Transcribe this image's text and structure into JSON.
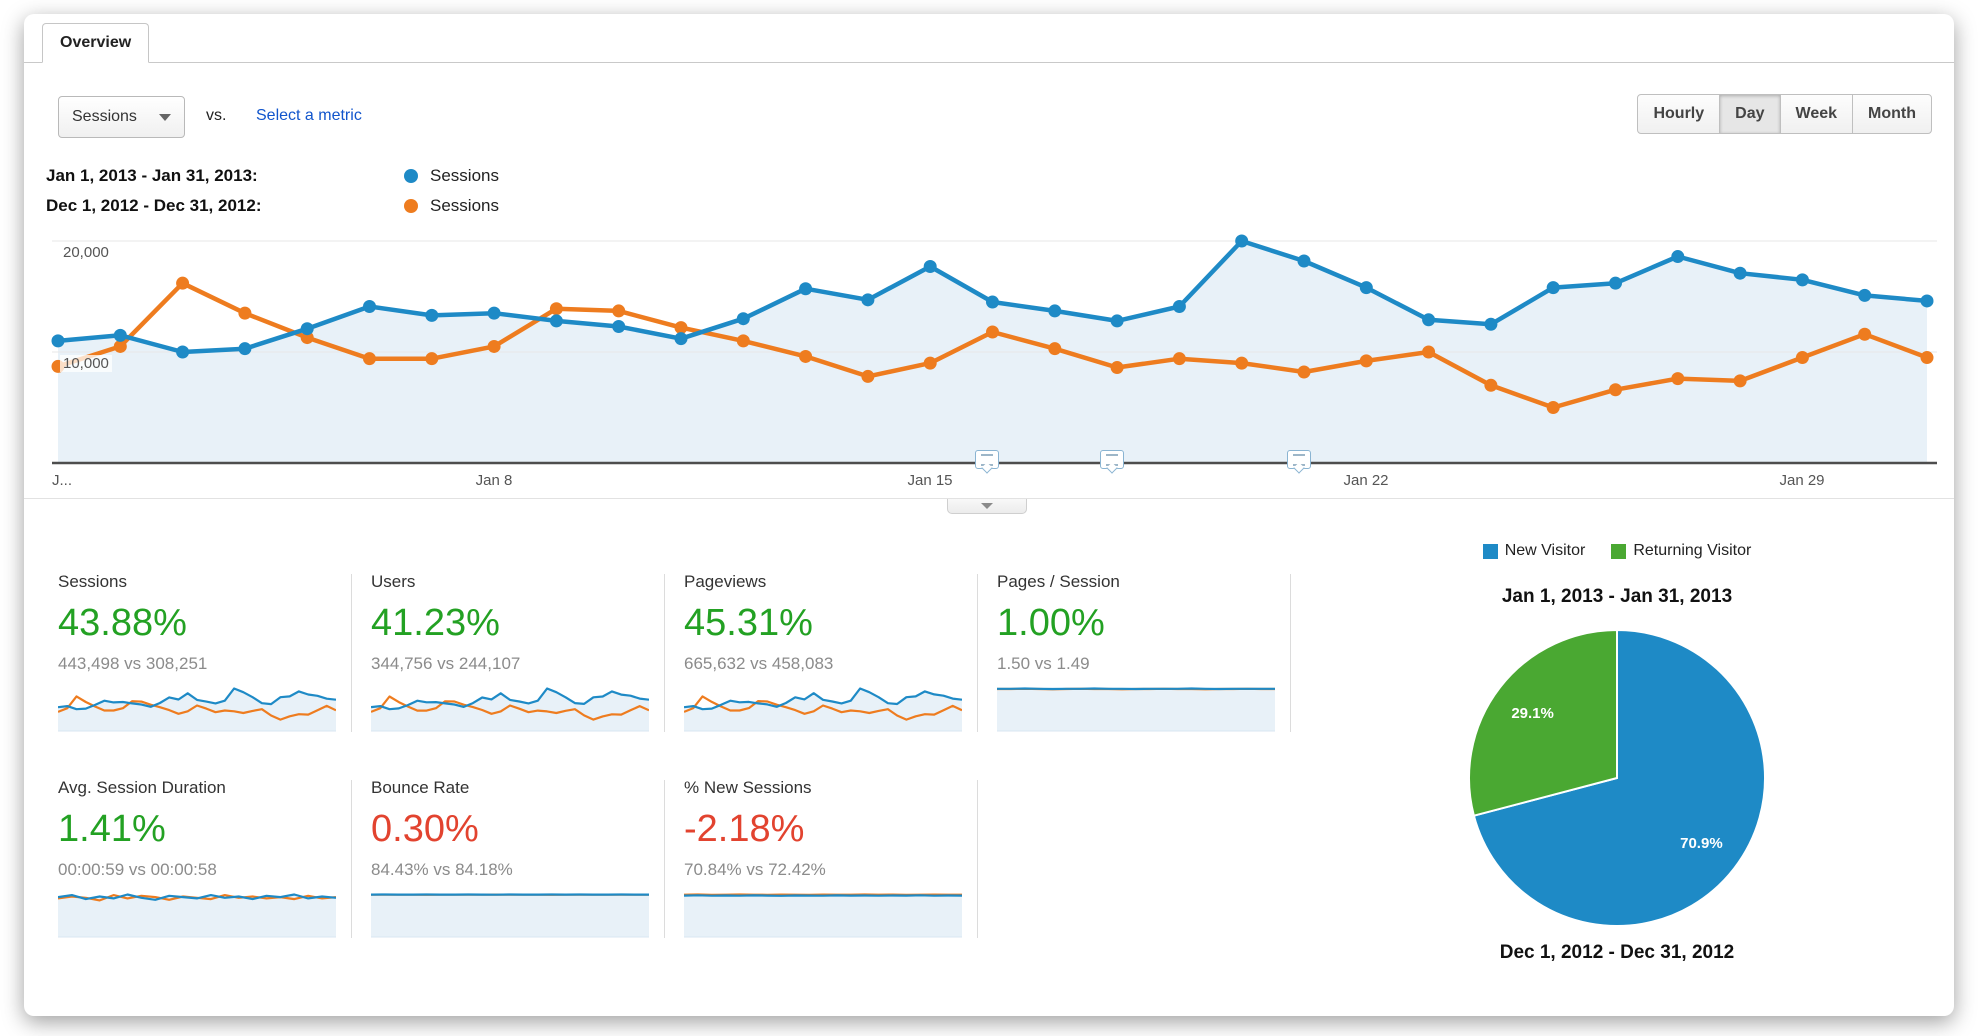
{
  "tab": {
    "label": "Overview"
  },
  "controls": {
    "metric_select": "Sessions",
    "vs_label": "vs.",
    "select_metric_link": "Select a metric",
    "granularity": [
      "Hourly",
      "Day",
      "Week",
      "Month"
    ],
    "granularity_active": "Day"
  },
  "legend": [
    {
      "range": "Jan 1, 2013 - Jan 31, 2013:",
      "series": "Sessions",
      "color": "#1e8ac6"
    },
    {
      "range": "Dec 1, 2012 - Dec 31, 2012:",
      "series": "Sessions",
      "color": "#ee7c1f"
    }
  ],
  "colors": {
    "blue": "#1e8ac6",
    "orange": "#ee7c1f",
    "area_fill": "#e8f1f8",
    "grid": "#e7e7e7",
    "axis": "#4d4d4d",
    "positive_green": "#23a123",
    "negative_red": "#e2432f",
    "link_blue": "#1155cc",
    "pie_green": "#4aa832"
  },
  "chart_data": [
    {
      "type": "line",
      "title": "Sessions by day, Jan 2013 vs Dec 2012",
      "xtick_labels": [
        "J...",
        "Jan 8",
        "Jan 15",
        "Jan 22",
        "Jan 29"
      ],
      "xtick_days": [
        1,
        8,
        15,
        22,
        29
      ],
      "ytick_labels": [
        "20,000",
        "10,000"
      ],
      "yticks": [
        20000,
        10000
      ],
      "ylim": [
        0,
        22000
      ],
      "grid": true,
      "annotations_day": [
        15.9,
        17.9,
        20.9
      ],
      "series": [
        {
          "name": "Jan 1, 2013 - Jan 31, 2013 Sessions",
          "color": "#1e8ac6",
          "area": true,
          "values": [
            11000,
            11500,
            10000,
            10300,
            12100,
            14100,
            13300,
            13500,
            12800,
            12300,
            11200,
            13000,
            15700,
            14700,
            17700,
            14500,
            13700,
            12800,
            14100,
            20000,
            18200,
            15800,
            12900,
            12500,
            15800,
            16200,
            18600,
            17100,
            16500,
            15100,
            14600
          ]
        },
        {
          "name": "Dec 1, 2012 - Dec 31, 2012 Sessions",
          "color": "#ee7c1f",
          "area": false,
          "values": [
            8700,
            10500,
            16200,
            13500,
            11300,
            9400,
            9400,
            10500,
            13900,
            13700,
            12200,
            11000,
            9600,
            7800,
            9000,
            11800,
            10300,
            8600,
            9400,
            9000,
            8200,
            9200,
            10000,
            7000,
            5000,
            6600,
            7600,
            7400,
            9500,
            11600,
            9500
          ]
        }
      ]
    },
    {
      "type": "pie",
      "categories": [
        "New Visitor",
        "Returning Visitor"
      ],
      "values": [
        70.9,
        29.1
      ],
      "labels_display": [
        "70.9%",
        "29.1%"
      ],
      "colors": [
        "#1e8ac6",
        "#4aa832"
      ],
      "legend_position": "top"
    }
  ],
  "cards": [
    {
      "title": "Sessions",
      "value": "43.88%",
      "value_color": "#23a123",
      "compare": "443,498 vs 308,251",
      "spark": {
        "blue": [
          11000,
          11500,
          10000,
          10300,
          12100,
          14100,
          13300,
          13500,
          12800,
          12300,
          11200,
          13000,
          15700,
          14700,
          17700,
          14500,
          13700,
          12800,
          14100,
          20000,
          18200,
          15800,
          12900,
          12500,
          15800,
          16200,
          18600,
          17100,
          16500,
          15100,
          14600
        ],
        "orange": [
          8700,
          10500,
          16200,
          13500,
          11300,
          9400,
          9400,
          10500,
          13900,
          13700,
          12200,
          11000,
          9600,
          7800,
          9000,
          11800,
          10300,
          8600,
          9400,
          9000,
          8200,
          9200,
          10000,
          7000,
          5000,
          6600,
          7600,
          7400,
          9500,
          11600,
          9500
        ]
      }
    },
    {
      "title": "Users",
      "value": "41.23%",
      "value_color": "#23a123",
      "compare": "344,756 vs 244,107",
      "spark": {
        "blue": [
          8600,
          9000,
          7800,
          8100,
          9400,
          11000,
          10400,
          10500,
          10000,
          9600,
          8700,
          10100,
          12200,
          11500,
          13800,
          11300,
          10700,
          10000,
          11000,
          15600,
          14200,
          12300,
          10100,
          9800,
          12300,
          12600,
          14500,
          13300,
          12900,
          11800,
          11400
        ],
        "orange": [
          6800,
          8200,
          12600,
          10500,
          8800,
          7300,
          7300,
          8200,
          10800,
          10700,
          9500,
          8600,
          7500,
          6100,
          7000,
          9200,
          8000,
          6700,
          7300,
          7000,
          6400,
          7200,
          7800,
          5500,
          3900,
          5100,
          5900,
          5800,
          7400,
          9000,
          7400
        ]
      }
    },
    {
      "title": "Pageviews",
      "value": "45.31%",
      "value_color": "#23a123",
      "compare": "665,632 vs 458,083",
      "spark": {
        "blue": [
          16500,
          17300,
          15000,
          15500,
          18200,
          21200,
          20000,
          20300,
          19200,
          18500,
          16800,
          19500,
          23600,
          22100,
          26600,
          21800,
          20600,
          19200,
          21200,
          30000,
          27300,
          23700,
          19400,
          18800,
          23700,
          24300,
          27900,
          25700,
          24800,
          22700,
          21900
        ],
        "orange": [
          13100,
          15800,
          24300,
          20300,
          17000,
          14100,
          14100,
          15800,
          20900,
          20600,
          18300,
          16500,
          14400,
          11700,
          13500,
          17700,
          15500,
          12900,
          14100,
          13500,
          12300,
          13800,
          15000,
          10500,
          7500,
          9900,
          11400,
          11100,
          14300,
          17400,
          14300
        ]
      }
    },
    {
      "title": "Pages / Session",
      "value": "1.00%",
      "value_color": "#23a123",
      "compare": "1.50 vs 1.49",
      "spark": {
        "blue": [
          1.5,
          1.5,
          1.51,
          1.5,
          1.49,
          1.5,
          1.5,
          1.51,
          1.5,
          1.5,
          1.49,
          1.5,
          1.5,
          1.5,
          1.51,
          1.5,
          1.49,
          1.5,
          1.5,
          1.5,
          1.5
        ],
        "orange": [
          1.49,
          1.49,
          1.5,
          1.49,
          1.48,
          1.49,
          1.5,
          1.49,
          1.49,
          1.48,
          1.49,
          1.49,
          1.5,
          1.49,
          1.49,
          1.48,
          1.49,
          1.49,
          1.5,
          1.49,
          1.49
        ]
      }
    },
    {
      "title": "Avg. Session Duration",
      "value": "1.41%",
      "value_color": "#23a123",
      "compare": "00:00:59 vs 00:00:58",
      "spark": {
        "blue": [
          59,
          62,
          56,
          60,
          57,
          63,
          58,
          55,
          61,
          59,
          57,
          62,
          58,
          60,
          56,
          61,
          59,
          63,
          57,
          60,
          58
        ],
        "orange": [
          57,
          60,
          58,
          54,
          62,
          57,
          61,
          59,
          55,
          60,
          58,
          56,
          62,
          58,
          60,
          57,
          59,
          56,
          61,
          57,
          59
        ]
      }
    },
    {
      "title": "Bounce Rate",
      "value": "0.30%",
      "value_color": "#e2432f",
      "compare": "84.43% vs 84.18%",
      "spark": {
        "blue": [
          84.4,
          84.5,
          84.3,
          84.4,
          84.6,
          84.4,
          84.3,
          84.5,
          84.4,
          84.2,
          84.5,
          84.4,
          84.3,
          84.6,
          84.4,
          84.5,
          84.3,
          84.4,
          84.5,
          84.4,
          84.3
        ],
        "orange": [
          84.2,
          84.1,
          84.3,
          84.2,
          84.0,
          84.2,
          84.3,
          84.1,
          84.2,
          84.4,
          84.1,
          84.2,
          84.3,
          84.0,
          84.2,
          84.1,
          84.3,
          84.2,
          84.1,
          84.2,
          84.3
        ]
      }
    },
    {
      "title": "% New Sessions",
      "value": "-2.18%",
      "value_color": "#e2432f",
      "compare": "70.84% vs 72.42%",
      "spark": {
        "blue": [
          70.8,
          71.2,
          70.5,
          70.9,
          70.6,
          71.1,
          70.8,
          70.4,
          71.0,
          70.8,
          70.6,
          71.1,
          70.7,
          70.9,
          70.5,
          71.0,
          70.8,
          71.2,
          70.6,
          70.9,
          70.7
        ],
        "orange": [
          72.4,
          72.6,
          72.2,
          72.4,
          72.7,
          72.4,
          72.2,
          72.5,
          72.4,
          72.1,
          72.5,
          72.4,
          72.3,
          72.6,
          72.4,
          72.5,
          72.2,
          72.4,
          72.5,
          72.4,
          72.3
        ]
      }
    }
  ],
  "pie": {
    "legend": [
      {
        "label": "New Visitor",
        "color": "#1e8ac6"
      },
      {
        "label": "Returning Visitor",
        "color": "#4aa832"
      }
    ],
    "title_top": "Jan 1, 2013 - Jan 31, 2013",
    "title_bottom": "Dec 1, 2012 - Dec 31, 2012"
  }
}
